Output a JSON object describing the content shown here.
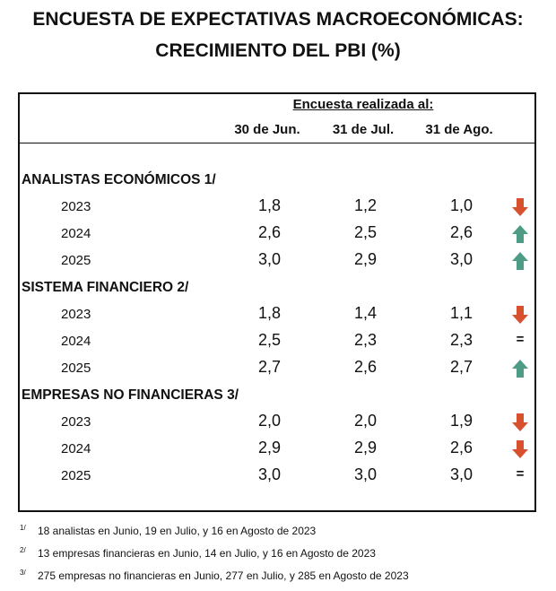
{
  "title": [
    "ENCUESTA DE EXPECTATIVAS MACROECONÓMICAS:",
    "CRECIMIENTO DEL PBI (%)"
  ],
  "survey_label": "Encuesta realizada al:",
  "columns": [
    "30 de Jun.",
    "31 de Jul.",
    "31 de Ago."
  ],
  "colors": {
    "down": "#d9502e",
    "up": "#4e9c86"
  },
  "sections": [
    {
      "label": "ANALISTAS ECONÓMICOS 1/",
      "rows": [
        {
          "year": "2023",
          "values": [
            "1,8",
            "1,2",
            "1,0"
          ],
          "trend": "down"
        },
        {
          "year": "2024",
          "values": [
            "2,6",
            "2,5",
            "2,6"
          ],
          "trend": "up"
        },
        {
          "year": "2025",
          "values": [
            "3,0",
            "2,9",
            "3,0"
          ],
          "trend": "up"
        }
      ]
    },
    {
      "label": "SISTEMA FINANCIERO 2/",
      "rows": [
        {
          "year": "2023",
          "values": [
            "1,8",
            "1,4",
            "1,1"
          ],
          "trend": "down"
        },
        {
          "year": "2024",
          "values": [
            "2,5",
            "2,3",
            "2,3"
          ],
          "trend": "="
        },
        {
          "year": "2025",
          "values": [
            "2,7",
            "2,6",
            "2,7"
          ],
          "trend": "up"
        }
      ]
    },
    {
      "label": "EMPRESAS NO FINANCIERAS 3/",
      "rows": [
        {
          "year": "2023",
          "values": [
            "2,0",
            "2,0",
            "1,9"
          ],
          "trend": "down"
        },
        {
          "year": "2024",
          "values": [
            "2,9",
            "2,9",
            "2,6"
          ],
          "trend": "down"
        },
        {
          "year": "2025",
          "values": [
            "3,0",
            "3,0",
            "3,0"
          ],
          "trend": "="
        }
      ]
    }
  ],
  "footnotes": [
    {
      "mark": "1/",
      "text": "18 analistas en Junio, 19 en Julio, y 16 en Agosto de 2023"
    },
    {
      "mark": "2/",
      "text": "13 empresas financieras en Junio, 14 en Julio, y 16 en Agosto de 2023"
    },
    {
      "mark": "3/",
      "text": "275 empresas no financieras en Junio, 277 en Julio, y 285 en Agosto de 2023"
    }
  ]
}
